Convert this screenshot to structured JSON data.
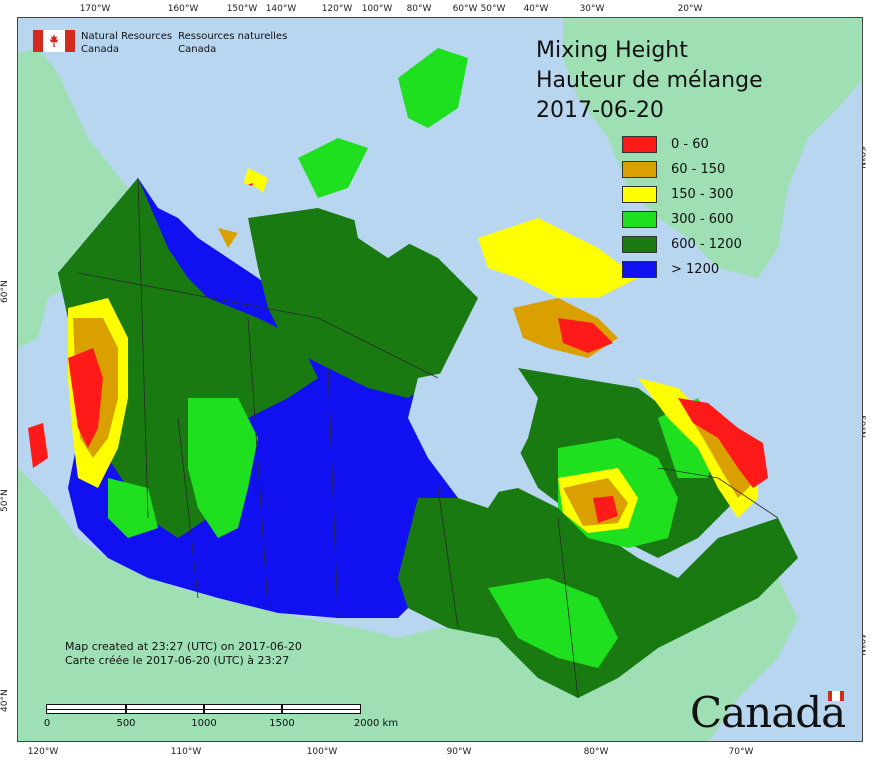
{
  "map": {
    "title_lines": [
      "Mixing Height",
      "Hauteur de mélange",
      "2017-06-20"
    ],
    "agency": {
      "en_line1": "Natural Resources",
      "en_line2": "Canada",
      "fr_line1": "Ressources naturelles",
      "fr_line2": "Canada"
    },
    "legend": [
      {
        "label": "0 - 60",
        "color": "#ff1a1a"
      },
      {
        "label": "60 - 150",
        "color": "#d9a000"
      },
      {
        "label": "150 - 300",
        "color": "#ffff00"
      },
      {
        "label": "300 - 600",
        "color": "#1ee01e"
      },
      {
        "label": "600 - 1200",
        "color": "#1a7a12"
      },
      {
        "label": "> 1200",
        "color": "#1010f0"
      }
    ],
    "credits": {
      "line1": "Map created at 23:27 (UTC) on 2017-06-20",
      "line2": "Carte créée le 2017-06-20 (UTC) à 23:27"
    },
    "scale": {
      "labels": [
        "0",
        "500",
        "1000",
        "1500",
        "2000 km"
      ]
    },
    "wordmark": "Canada",
    "ticks_top": [
      "170°W",
      "160°W",
      "150°W",
      "140°W",
      "120°W",
      "100°W",
      "80°W",
      "60°W",
      "50°W",
      "40°W",
      "30°W",
      "20°W"
    ],
    "ticks_bottom": [
      "120°W",
      "110°W",
      "100°W",
      "90°W",
      "80°W",
      "70°W"
    ],
    "ticks_left": [
      "60°N",
      "50°N",
      "40°N"
    ],
    "ticks_right": [
      "60°N",
      "50°N",
      "40°N"
    ],
    "colors": {
      "ocean": "#b9d6f0",
      "land_outside": "#9ee0b4",
      "border": "#2a2a2a"
    }
  }
}
